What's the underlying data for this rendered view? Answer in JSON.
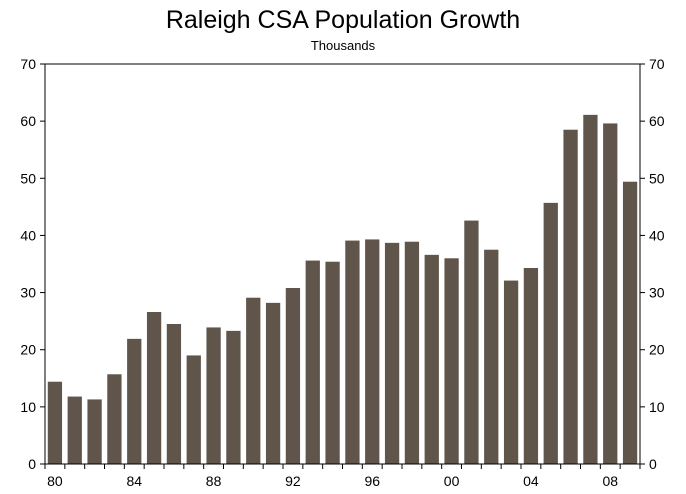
{
  "chart_data": {
    "type": "bar",
    "title": "Raleigh CSA Population Growth",
    "subtitle": "Thousands",
    "xlabel": "",
    "ylabel": "",
    "ylim": [
      0,
      70
    ],
    "yticks": [
      0,
      10,
      20,
      30,
      40,
      50,
      60,
      70
    ],
    "x_tick_labels": [
      {
        "label": "80",
        "year": 1980
      },
      {
        "label": "84",
        "year": 1984
      },
      {
        "label": "88",
        "year": 1988
      },
      {
        "label": "92",
        "year": 1992
      },
      {
        "label": "96",
        "year": 1996
      },
      {
        "label": "00",
        "year": 2000
      },
      {
        "label": "04",
        "year": 2004
      },
      {
        "label": "08",
        "year": 2008
      }
    ],
    "categories": [
      1980,
      1981,
      1982,
      1983,
      1984,
      1985,
      1986,
      1987,
      1988,
      1989,
      1990,
      1991,
      1992,
      1993,
      1994,
      1995,
      1996,
      1997,
      1998,
      1999,
      2000,
      2001,
      2002,
      2003,
      2004,
      2005,
      2006,
      2007,
      2008,
      2009
    ],
    "values": [
      14.4,
      11.8,
      11.3,
      15.7,
      21.9,
      26.6,
      24.5,
      19.0,
      23.9,
      23.3,
      29.1,
      28.2,
      30.8,
      35.6,
      35.4,
      39.1,
      39.3,
      38.7,
      38.9,
      36.6,
      36.0,
      42.6,
      37.5,
      32.1,
      34.3,
      45.7,
      58.5,
      61.1,
      59.6,
      49.4
    ],
    "grid": false,
    "legend": "none",
    "bar_color": "#5f554b",
    "dual_y_axis": true
  }
}
